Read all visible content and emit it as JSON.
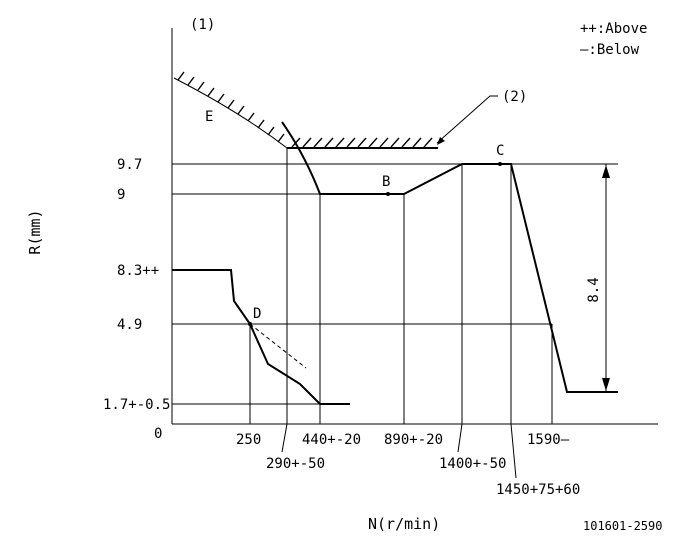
{
  "legend": {
    "above": "++:Above",
    "below": "—:Below"
  },
  "labels": {
    "point_1": "(1)",
    "point_2": "(2)",
    "E": "E",
    "B": "B",
    "C": "C",
    "D": "D"
  },
  "y_axis": {
    "title": "R(mm)",
    "ticks": [
      "9.7",
      "9",
      "8.3++",
      "4.9",
      "1.7+-0.5",
      "0"
    ]
  },
  "x_axis": {
    "title": "N(r/min)",
    "ticks": [
      "250",
      "440+-20",
      "890+-20",
      "1590—"
    ],
    "ticks_lower": [
      "290+-50",
      "1400+-50",
      "1450+75+60"
    ]
  },
  "dimension": "8.4",
  "doc_number": "101601-2590"
}
